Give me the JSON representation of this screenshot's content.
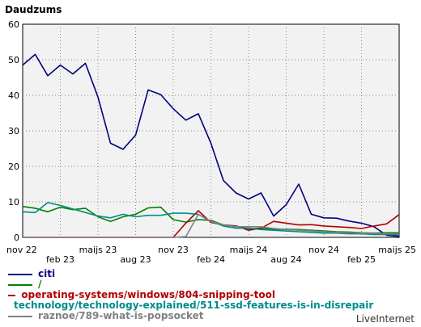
{
  "chart_data": {
    "type": "line",
    "title": "Daudzums",
    "xlabel": "",
    "ylabel": "",
    "ylim": [
      0,
      60
    ],
    "y_ticks": [
      0,
      10,
      20,
      30,
      40,
      50,
      60
    ],
    "x_ticks": [
      "nov 22",
      "feb 23",
      "maijs 23",
      "aug 23",
      "nov 23",
      "feb 24",
      "maijs 24",
      "aug 24",
      "nov 24",
      "feb 25",
      "maijs 25"
    ],
    "grid": true,
    "legend_position": "bottom-left",
    "x_count": 31,
    "series": [
      {
        "name": "citi",
        "color": "#000080",
        "values": [
          48.5,
          51.5,
          45.5,
          48.5,
          46,
          49,
          39.5,
          26.5,
          24.8,
          28.8,
          41.5,
          40.2,
          36.2,
          33,
          34.8,
          26.5,
          16,
          12.5,
          10.8,
          12.5,
          6,
          9.2,
          15,
          6.5,
          5.5,
          5.4,
          4.6,
          4,
          3,
          0.6,
          0.3
        ]
      },
      {
        "name": "/",
        "color": "#008000",
        "values": [
          8.7,
          8.2,
          7.2,
          8.5,
          7.8,
          8.2,
          5.8,
          4.5,
          5.8,
          6.5,
          8.3,
          8.5,
          5,
          4.3,
          5,
          4.8,
          3.5,
          3.2,
          2.4,
          2.6,
          2.2,
          2.3,
          2.2,
          2.0,
          1.8,
          1.6,
          1.5,
          1.3,
          1.2,
          1.3,
          1.3
        ]
      },
      {
        "name": "operating-systems/windows/804-snipping-tool",
        "color": "#b00000",
        "values": [
          0,
          0,
          0,
          0,
          0,
          0,
          0,
          0,
          0,
          0,
          0,
          0,
          0,
          4,
          7.5,
          4.2,
          3.5,
          3.2,
          2,
          2.6,
          4.5,
          4,
          3.5,
          3.6,
          3.2,
          3,
          2.8,
          2.5,
          3.2,
          3.8,
          6.4
        ]
      },
      {
        "name": "technology/technology-explained/511-ssd-features-is-in-disrepair",
        "color": "#008b8b",
        "values": [
          7.2,
          7,
          9.8,
          9,
          8,
          7,
          6,
          5.5,
          6.5,
          5.8,
          6.2,
          6.2,
          6.8,
          6.8,
          6.5,
          4.5,
          3.2,
          2.6,
          2.6,
          2.2,
          2,
          1.8,
          1.6,
          1.4,
          1.2,
          1.2,
          1,
          1,
          0.8,
          0.8,
          0.7
        ]
      },
      {
        "name": "raznoe/789-what-is-popsocket",
        "color": "#808080",
        "values": [
          0,
          0,
          0,
          0,
          0,
          0,
          0,
          0,
          0,
          0,
          0,
          0,
          0,
          0.2,
          6.5,
          4.5,
          3.5,
          3,
          3,
          3,
          2.5,
          2.2,
          2,
          1.8,
          1.6,
          1.4,
          1.3,
          1.2,
          1.1,
          1,
          1
        ]
      }
    ]
  },
  "footer": {
    "credit": "LiveInternet"
  }
}
